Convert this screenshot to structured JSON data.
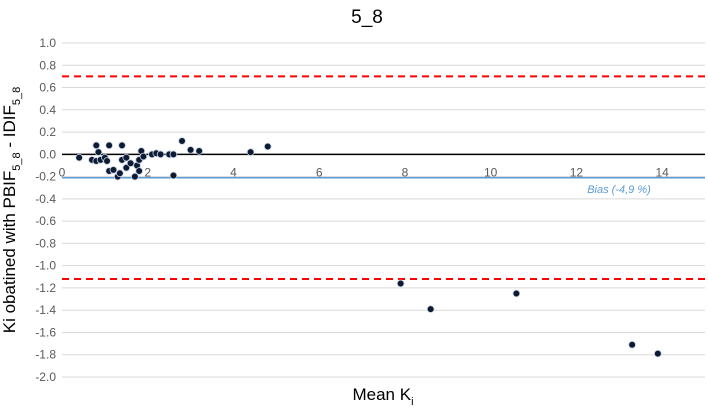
{
  "chart_data": {
    "type": "scatter",
    "title": "5_8",
    "xlabel": "Mean K",
    "xlabel_sub": "i",
    "ylabel_parts": [
      "Ki obatined with PBIF",
      "5_8",
      " - IDIF",
      "5_8"
    ],
    "xlim": [
      0,
      15
    ],
    "ylim": [
      -2.0,
      1.0
    ],
    "x_ticks": [
      0,
      2,
      4,
      6,
      8,
      10,
      12,
      14
    ],
    "y_ticks": [
      1.0,
      0.8,
      0.6,
      0.4,
      0.2,
      0.0,
      -0.2,
      -0.4,
      -0.6,
      -0.8,
      -1.0,
      -1.2,
      -1.4,
      -1.6,
      -1.8,
      -2.0
    ],
    "y_tick_labels": [
      "1.0",
      "0.8",
      "0.6",
      "0.4",
      "0.2",
      "0.0",
      "-0.2",
      "-0.4",
      "-0.6",
      "-0.8",
      "-1.0",
      "-1.2",
      "-1.4",
      "-1.6",
      "-1.8",
      "-2.0"
    ],
    "x_tick_labels": [
      "0",
      "2",
      "4",
      "6",
      "8",
      "10",
      "12",
      "14"
    ],
    "grid": "horizontal",
    "zero_line": 0,
    "bias": {
      "value": -0.21,
      "label": "Bias (-4,9 %)",
      "color": "#5b9bd5"
    },
    "limits_of_agreement": {
      "upper": 0.7,
      "lower": -1.12,
      "color": "#ff0000"
    },
    "point_color": "#0d1a33",
    "points": [
      {
        "x": 0.4,
        "y": -0.03
      },
      {
        "x": 0.7,
        "y": -0.05
      },
      {
        "x": 0.8,
        "y": 0.08
      },
      {
        "x": 0.85,
        "y": 0.02
      },
      {
        "x": 0.8,
        "y": -0.06
      },
      {
        "x": 0.9,
        "y": -0.05
      },
      {
        "x": 1.0,
        "y": -0.03
      },
      {
        "x": 1.05,
        "y": -0.06
      },
      {
        "x": 1.1,
        "y": 0.08
      },
      {
        "x": 1.1,
        "y": -0.15
      },
      {
        "x": 1.2,
        "y": -0.14
      },
      {
        "x": 1.3,
        "y": -0.2
      },
      {
        "x": 1.35,
        "y": -0.17
      },
      {
        "x": 1.4,
        "y": -0.05
      },
      {
        "x": 1.4,
        "y": 0.08
      },
      {
        "x": 1.5,
        "y": -0.03
      },
      {
        "x": 1.5,
        "y": -0.12
      },
      {
        "x": 1.6,
        "y": -0.08
      },
      {
        "x": 1.7,
        "y": -0.2
      },
      {
        "x": 1.75,
        "y": -0.1
      },
      {
        "x": 1.8,
        "y": -0.15
      },
      {
        "x": 1.8,
        "y": -0.05
      },
      {
        "x": 1.85,
        "y": 0.03
      },
      {
        "x": 1.9,
        "y": -0.02
      },
      {
        "x": 2.1,
        "y": 0.0
      },
      {
        "x": 2.2,
        "y": 0.01
      },
      {
        "x": 2.3,
        "y": 0.0
      },
      {
        "x": 2.5,
        "y": 0.0
      },
      {
        "x": 2.6,
        "y": 0.0
      },
      {
        "x": 2.6,
        "y": -0.19
      },
      {
        "x": 2.8,
        "y": 0.12
      },
      {
        "x": 3.0,
        "y": 0.04
      },
      {
        "x": 3.2,
        "y": 0.03
      },
      {
        "x": 4.4,
        "y": 0.02
      },
      {
        "x": 4.8,
        "y": 0.07
      },
      {
        "x": 7.9,
        "y": -1.16
      },
      {
        "x": 8.6,
        "y": -1.39
      },
      {
        "x": 10.6,
        "y": -1.25
      },
      {
        "x": 13.3,
        "y": -1.71
      },
      {
        "x": 13.9,
        "y": -1.79
      }
    ]
  }
}
